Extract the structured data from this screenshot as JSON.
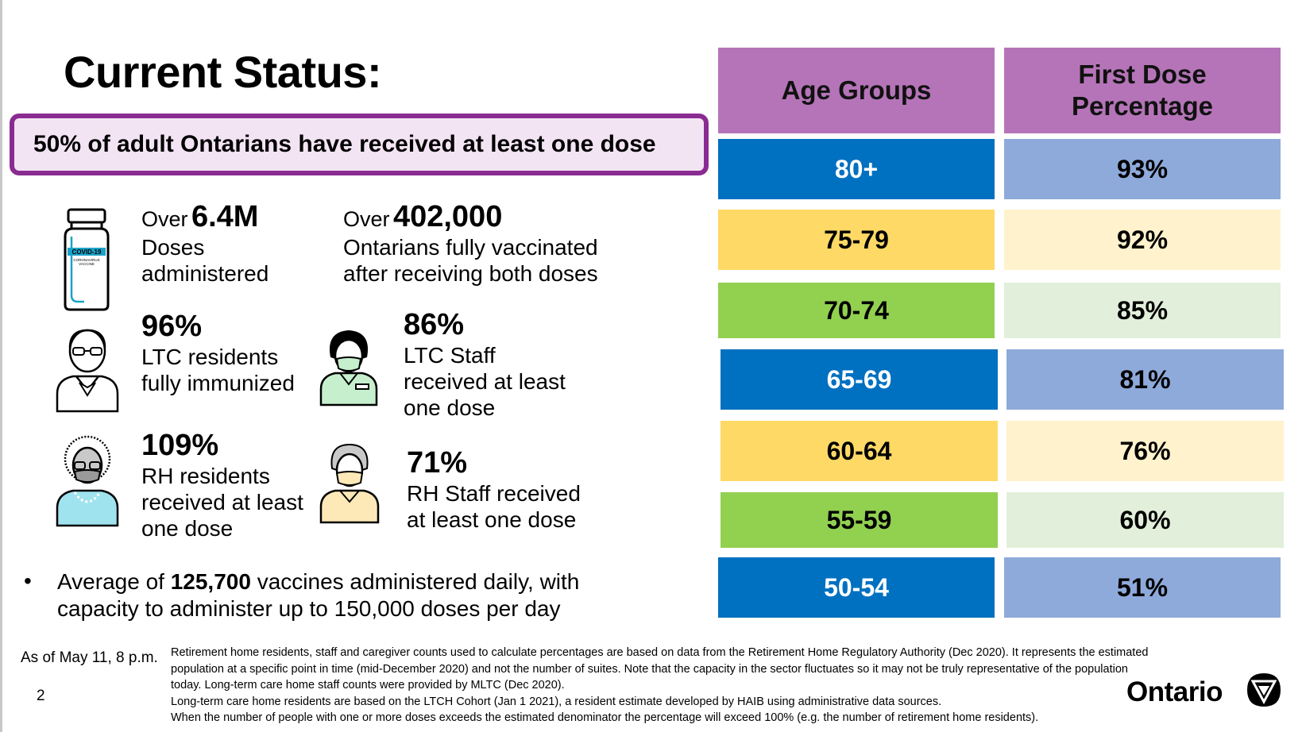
{
  "title": "Current Status:",
  "callout": "50% of adult Ontarians have received at least one dose",
  "stats": {
    "doses": {
      "prefix": "Over",
      "big": "6.4M",
      "line1": "Doses",
      "line2": "administered",
      "vial_label": "COVID-19",
      "vial_sub1": "CORONAVIRUS",
      "vial_sub2": "VACCINE"
    },
    "fully": {
      "prefix": "Over",
      "big": "402,000",
      "line1": "Ontarians fully vaccinated",
      "line2": "after receiving both doses"
    },
    "ltc_res": {
      "big": "96%",
      "line1": "LTC residents",
      "line2": "fully immunized"
    },
    "ltc_staff": {
      "big": "86%",
      "line1": "LTC Staff",
      "line2": "received at least",
      "line3": "one dose"
    },
    "rh_res": {
      "big": "109%",
      "line1": "RH residents",
      "line2": "received at least",
      "line3": "one dose"
    },
    "rh_staff": {
      "big": "71%",
      "line1": "RH Staff received",
      "line2": "at least one dose"
    }
  },
  "bullet": {
    "pre": "Average of ",
    "bold": "125,700",
    "post": " vaccines administered daily, with",
    "line2": "capacity to administer up to 150,000 doses per day"
  },
  "table": {
    "headers": [
      "Age Groups",
      "First Dose\nPercentage"
    ],
    "rows": [
      {
        "age": "80+",
        "pct": "93%"
      },
      {
        "age": "75-79",
        "pct": "92%"
      },
      {
        "age": "70-74",
        "pct": "85%"
      },
      {
        "age": "65-69",
        "pct": "81%"
      },
      {
        "age": "60-64",
        "pct": "76%"
      },
      {
        "age": "55-59",
        "pct": "60%"
      },
      {
        "age": "50-54",
        "pct": "51%"
      }
    ],
    "colors": {
      "header": "#b574b8",
      "blue_dark": "#0070c0",
      "blue_light": "#8eaadb",
      "yellow_dark": "#ffd966",
      "yellow_light": "#fff2cc",
      "green_dark": "#92d050",
      "green_light": "#e2efda"
    }
  },
  "footer": {
    "date": "As of May 11, 8 p.m.",
    "page": "2",
    "notes": [
      "Retirement home residents, staff and caregiver counts used to calculate percentages are based on data from the Retirement Home Regulatory Authority (Dec 2020). It represents the estimated",
      "population at a specific point in time (mid-December 2020) and not the number of suites. Note that the capacity in the sector fluctuates so it may not be truly representative of the population",
      "today. Long-term care home staff counts were provided by MLTC (Dec 2020).",
      "Long-term care home residents are based on the LTCH Cohort (Jan 1 2021), a resident estimate developed by HAIB using administrative data sources.",
      "When the number of people with one or more doses exceeds the estimated denominator the percentage will exceed 100% (e.g. the number of retirement home residents)."
    ],
    "brand": "Ontario"
  }
}
